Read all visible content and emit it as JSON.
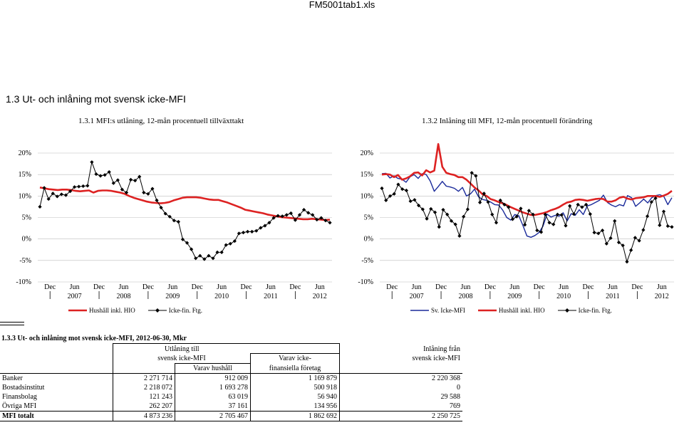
{
  "file_title": "FM5001tab1.xls",
  "section_title": "1.3  Ut- och inlåning mot svensk icke-MFI",
  "chart_data": [
    {
      "type": "line",
      "title": "1.3.1 MFI:s utlåning, 12-mån procentuell tillväxttakt",
      "y_ticks": [
        "-10%",
        "-5%",
        "0%",
        "5%",
        "10%",
        "15%",
        "20%"
      ],
      "ylim": [
        -10,
        20
      ],
      "x_tick_labels": [
        {
          "top": "Dec",
          "bottom": ""
        },
        {
          "top": "Jun",
          "bottom": "2007"
        },
        {
          "top": "Dec",
          "bottom": ""
        },
        {
          "top": "Jun",
          "bottom": "2008"
        },
        {
          "top": "Dec",
          "bottom": ""
        },
        {
          "top": "Jun",
          "bottom": "2009"
        },
        {
          "top": "Dec",
          "bottom": ""
        },
        {
          "top": "Jun",
          "bottom": "2010"
        },
        {
          "top": "Dec",
          "bottom": ""
        },
        {
          "top": "Jun",
          "bottom": "2011"
        },
        {
          "top": "Dec",
          "bottom": ""
        },
        {
          "top": "Jun",
          "bottom": "2012"
        }
      ],
      "grid": "horizontal",
      "legend_placement": "bottom",
      "series": [
        {
          "name": "Hushåll inkl. HIO",
          "color": "#dd2222",
          "marker": "none",
          "values": [
            12.0,
            11.8,
            11.6,
            11.5,
            11.4,
            11.5,
            11.5,
            11.4,
            11.2,
            11.1,
            11.2,
            11.3,
            10.8,
            11.2,
            11.3,
            11.3,
            11.2,
            11.0,
            10.8,
            10.5,
            10.0,
            9.6,
            9.3,
            9.0,
            8.7,
            8.5,
            8.4,
            8.3,
            8.4,
            8.6,
            9.0,
            9.3,
            9.6,
            9.7,
            9.7,
            9.7,
            9.6,
            9.4,
            9.2,
            9.1,
            9.1,
            8.8,
            8.5,
            8.1,
            7.7,
            7.3,
            6.8,
            6.6,
            6.4,
            6.2,
            6.0,
            5.7,
            5.5,
            5.3,
            5.1,
            5.0,
            4.9,
            4.8,
            4.7,
            4.6,
            4.6,
            4.7,
            4.6,
            4.5,
            4.4,
            4.5
          ]
        },
        {
          "name": "Icke-fin. Ftg.",
          "color": "#000000",
          "marker": "diamond",
          "values": [
            7.5,
            11.9,
            9.3,
            10.6,
            9.9,
            10.4,
            10.2,
            11.1,
            12.1,
            12.2,
            12.3,
            12.4,
            17.9,
            15.1,
            14.7,
            14.9,
            15.6,
            13.0,
            13.7,
            11.5,
            10.8,
            13.8,
            13.6,
            14.5,
            10.8,
            10.5,
            11.7,
            9.0,
            7.3,
            5.9,
            5.2,
            4.3,
            4.0,
            -0.1,
            -0.9,
            -2.4,
            -4.5,
            -3.9,
            -4.7,
            -3.9,
            -4.5,
            -3.1,
            -3.1,
            -1.4,
            -1.1,
            -0.5,
            1.3,
            1.5,
            1.7,
            1.7,
            1.9,
            2.6,
            3.1,
            3.8,
            4.9,
            5.4,
            5.3,
            5.6,
            6.0,
            4.4,
            5.6,
            6.8,
            6.1,
            5.6,
            4.5,
            4.9,
            4.3,
            3.8
          ]
        }
      ]
    },
    {
      "type": "line",
      "title": "1.3.2 Inlåning till MFI, 12-mån procentuell förändring",
      "y_ticks": [
        "-10%",
        "-5%",
        "0%",
        "5%",
        "10%",
        "15%",
        "20%"
      ],
      "ylim": [
        -10,
        20
      ],
      "x_tick_labels": [
        {
          "top": "Dec",
          "bottom": ""
        },
        {
          "top": "Jun",
          "bottom": "2007"
        },
        {
          "top": "Dec",
          "bottom": ""
        },
        {
          "top": "Jun",
          "bottom": "2008"
        },
        {
          "top": "Dec",
          "bottom": ""
        },
        {
          "top": "Jun",
          "bottom": "2009"
        },
        {
          "top": "Dec",
          "bottom": ""
        },
        {
          "top": "Jun",
          "bottom": "2010"
        },
        {
          "top": "Dec",
          "bottom": ""
        },
        {
          "top": "Jun",
          "bottom": "2011"
        },
        {
          "top": "Dec",
          "bottom": ""
        },
        {
          "top": "Jun",
          "bottom": "2012"
        }
      ],
      "grid": "horizontal",
      "legend_placement": "bottom",
      "series": [
        {
          "name": "Sv. Icke-MFI",
          "color": "#1a2a9a",
          "marker": "none",
          "values": [
            15.2,
            15.3,
            14.2,
            14.7,
            14.1,
            13.9,
            13.2,
            14.5,
            15.0,
            14.1,
            15.2,
            15.0,
            13.5,
            11.1,
            12.2,
            13.4,
            12.3,
            12.1,
            11.8,
            11.1,
            12.0,
            10.0,
            10.5,
            11.6,
            9.8,
            9.2,
            9.0,
            8.6,
            8.0,
            7.9,
            6.7,
            5.0,
            4.4,
            5.7,
            5.4,
            3.2,
            0.7,
            0.4,
            0.8,
            1.5,
            3.0,
            5.8,
            5.1,
            5.5,
            5.3,
            6.1,
            4.2,
            5.9,
            5.5,
            6.8,
            5.7,
            7.7,
            8.0,
            8.5,
            9.0,
            10.2,
            8.5,
            7.9,
            7.5,
            8.0,
            7.7,
            10.1,
            9.6,
            7.6,
            8.4,
            9.3,
            8.4,
            9.6,
            10.1,
            10.3,
            9.9,
            8.0,
            9.6
          ]
        },
        {
          "name": "Hushåll inkl. HIO",
          "color": "#dd2222",
          "marker": "none",
          "values": [
            15.0,
            15.1,
            15.0,
            14.4,
            14.9,
            13.8,
            14.1,
            14.6,
            15.4,
            15.5,
            14.8,
            16.0,
            15.5,
            15.9,
            22.1,
            16.8,
            15.4,
            15.1,
            14.9,
            14.4,
            14.4,
            13.8,
            12.9,
            12.0,
            11.3,
            10.4,
            10.0,
            9.3,
            9.0,
            8.6,
            8.3,
            7.9,
            7.4,
            7.0,
            6.6,
            6.2,
            5.9,
            5.6,
            5.6,
            5.8,
            6.0,
            6.3,
            6.7,
            7.0,
            7.4,
            8.0,
            8.5,
            8.7,
            9.1,
            9.2,
            9.1,
            8.9,
            9.1,
            9.3,
            9.4,
            9.3,
            8.7,
            8.7,
            9.0,
            9.6,
            9.8,
            9.4,
            9.2,
            9.5,
            9.6,
            9.7,
            10.0,
            10.0,
            10.0,
            9.8,
            10.1,
            10.5,
            11.2
          ]
        },
        {
          "name": "Icke-fin. Ftg.",
          "color": "#000000",
          "marker": "diamond",
          "values": [
            11.8,
            9.0,
            10.0,
            10.5,
            12.7,
            11.6,
            11.3,
            8.8,
            9.1,
            7.8,
            6.9,
            4.7,
            7.0,
            6.2,
            2.8,
            6.8,
            5.7,
            4.2,
            3.4,
            0.7,
            5.2,
            6.9,
            15.4,
            14.7,
            8.5,
            10.6,
            8.6,
            5.7,
            3.8,
            9.0,
            8.0,
            7.4,
            4.6,
            5.2,
            7.1,
            3.3,
            6.6,
            5.7,
            2.0,
            1.6,
            5.7,
            3.8,
            3.4,
            5.7,
            5.6,
            3.1,
            7.7,
            5.8,
            8.0,
            7.4,
            8.0,
            5.8,
            1.5,
            1.3,
            2.0,
            -1.1,
            0.2,
            4.2,
            -0.8,
            -1.5,
            -5.3,
            -2.6,
            0.3,
            -0.4,
            2.1,
            5.3,
            8.6,
            9.5,
            3.2,
            6.4,
            3.0,
            2.8
          ]
        }
      ]
    }
  ],
  "legend1": {
    "items": [
      "Hushåll inkl. HIO",
      "Icke-fin. Ftg."
    ]
  },
  "legend2": {
    "items": [
      "Sv. Icke-MFI",
      "Hushåll inkl. HIO",
      "Icke-fin. Ftg."
    ]
  },
  "table": {
    "title": "1.3.3  Ut- och inlåning mot svensk icke-MFI, 2012-06-30, Mkr",
    "header_utlaning_1": "Utlåning till",
    "header_utlaning_2": "svensk icke-MFI",
    "header_varav_hushall": "Varav hushåll",
    "header_varav_icke_1": "Varav icke-",
    "header_varav_icke_2": "finansiella företag",
    "header_inlaning_1": "Inlåning från",
    "header_inlaning_2": "svensk icke-MFI",
    "rows": [
      {
        "label": "Banker",
        "utlaning": "2 271 714",
        "hushall": "912 009",
        "foretag": "1 169 879",
        "inlaning": "2 220 368"
      },
      {
        "label": "Bostadsinstitut",
        "utlaning": "2 218 072",
        "hushall": "1 693 278",
        "foretag": "500 918",
        "inlaning": "0"
      },
      {
        "label": "Finansbolag",
        "utlaning": "121 243",
        "hushall": "63 019",
        "foretag": "56 940",
        "inlaning": "29 588"
      },
      {
        "label": "Övriga MFI",
        "utlaning": "262 207",
        "hushall": "37 161",
        "foretag": "134 956",
        "inlaning": "769"
      },
      {
        "label": "MFI totalt",
        "utlaning": "4 873 236",
        "hushall": "2 705 467",
        "foretag": "1 862 692",
        "inlaning": "2 250 725"
      }
    ]
  }
}
